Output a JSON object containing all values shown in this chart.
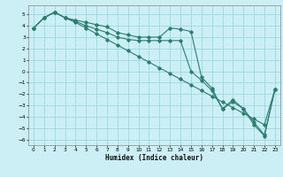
{
  "title": "",
  "xlabel": "Humidex (Indice chaleur)",
  "bg_color": "#cceef5",
  "grid_color": "#99d8e4",
  "line_color": "#2e7d6e",
  "xlim": [
    -0.5,
    23.5
  ],
  "ylim": [
    -6.5,
    5.8
  ],
  "xticks": [
    0,
    1,
    2,
    3,
    4,
    5,
    6,
    7,
    8,
    9,
    10,
    11,
    12,
    13,
    14,
    15,
    16,
    17,
    18,
    19,
    20,
    21,
    22,
    23
  ],
  "yticks": [
    -6,
    -5,
    -4,
    -3,
    -2,
    -1,
    0,
    1,
    2,
    3,
    4,
    5
  ],
  "series1": [
    3.8,
    4.7,
    5.2,
    4.7,
    4.5,
    4.3,
    4.1,
    3.9,
    3.4,
    3.2,
    3.0,
    3.0,
    3.0,
    3.8,
    3.7,
    3.5,
    -0.5,
    -1.5,
    -3.3,
    -2.5,
    -3.3,
    -4.7,
    -5.7,
    -1.6
  ],
  "series2": [
    3.8,
    4.7,
    5.2,
    4.7,
    4.4,
    4.0,
    3.7,
    3.4,
    3.0,
    2.8,
    2.7,
    2.7,
    2.7,
    2.7,
    2.7,
    0.0,
    -0.8,
    -1.7,
    -3.3,
    -2.7,
    -3.3,
    -4.5,
    -5.6,
    -1.6
  ],
  "series3": [
    3.8,
    4.7,
    5.2,
    4.7,
    4.3,
    3.8,
    3.3,
    2.8,
    2.3,
    1.8,
    1.3,
    0.8,
    0.3,
    -0.2,
    -0.7,
    -1.2,
    -1.7,
    -2.2,
    -2.7,
    -3.2,
    -3.7,
    -4.2,
    -4.7,
    -1.6
  ]
}
